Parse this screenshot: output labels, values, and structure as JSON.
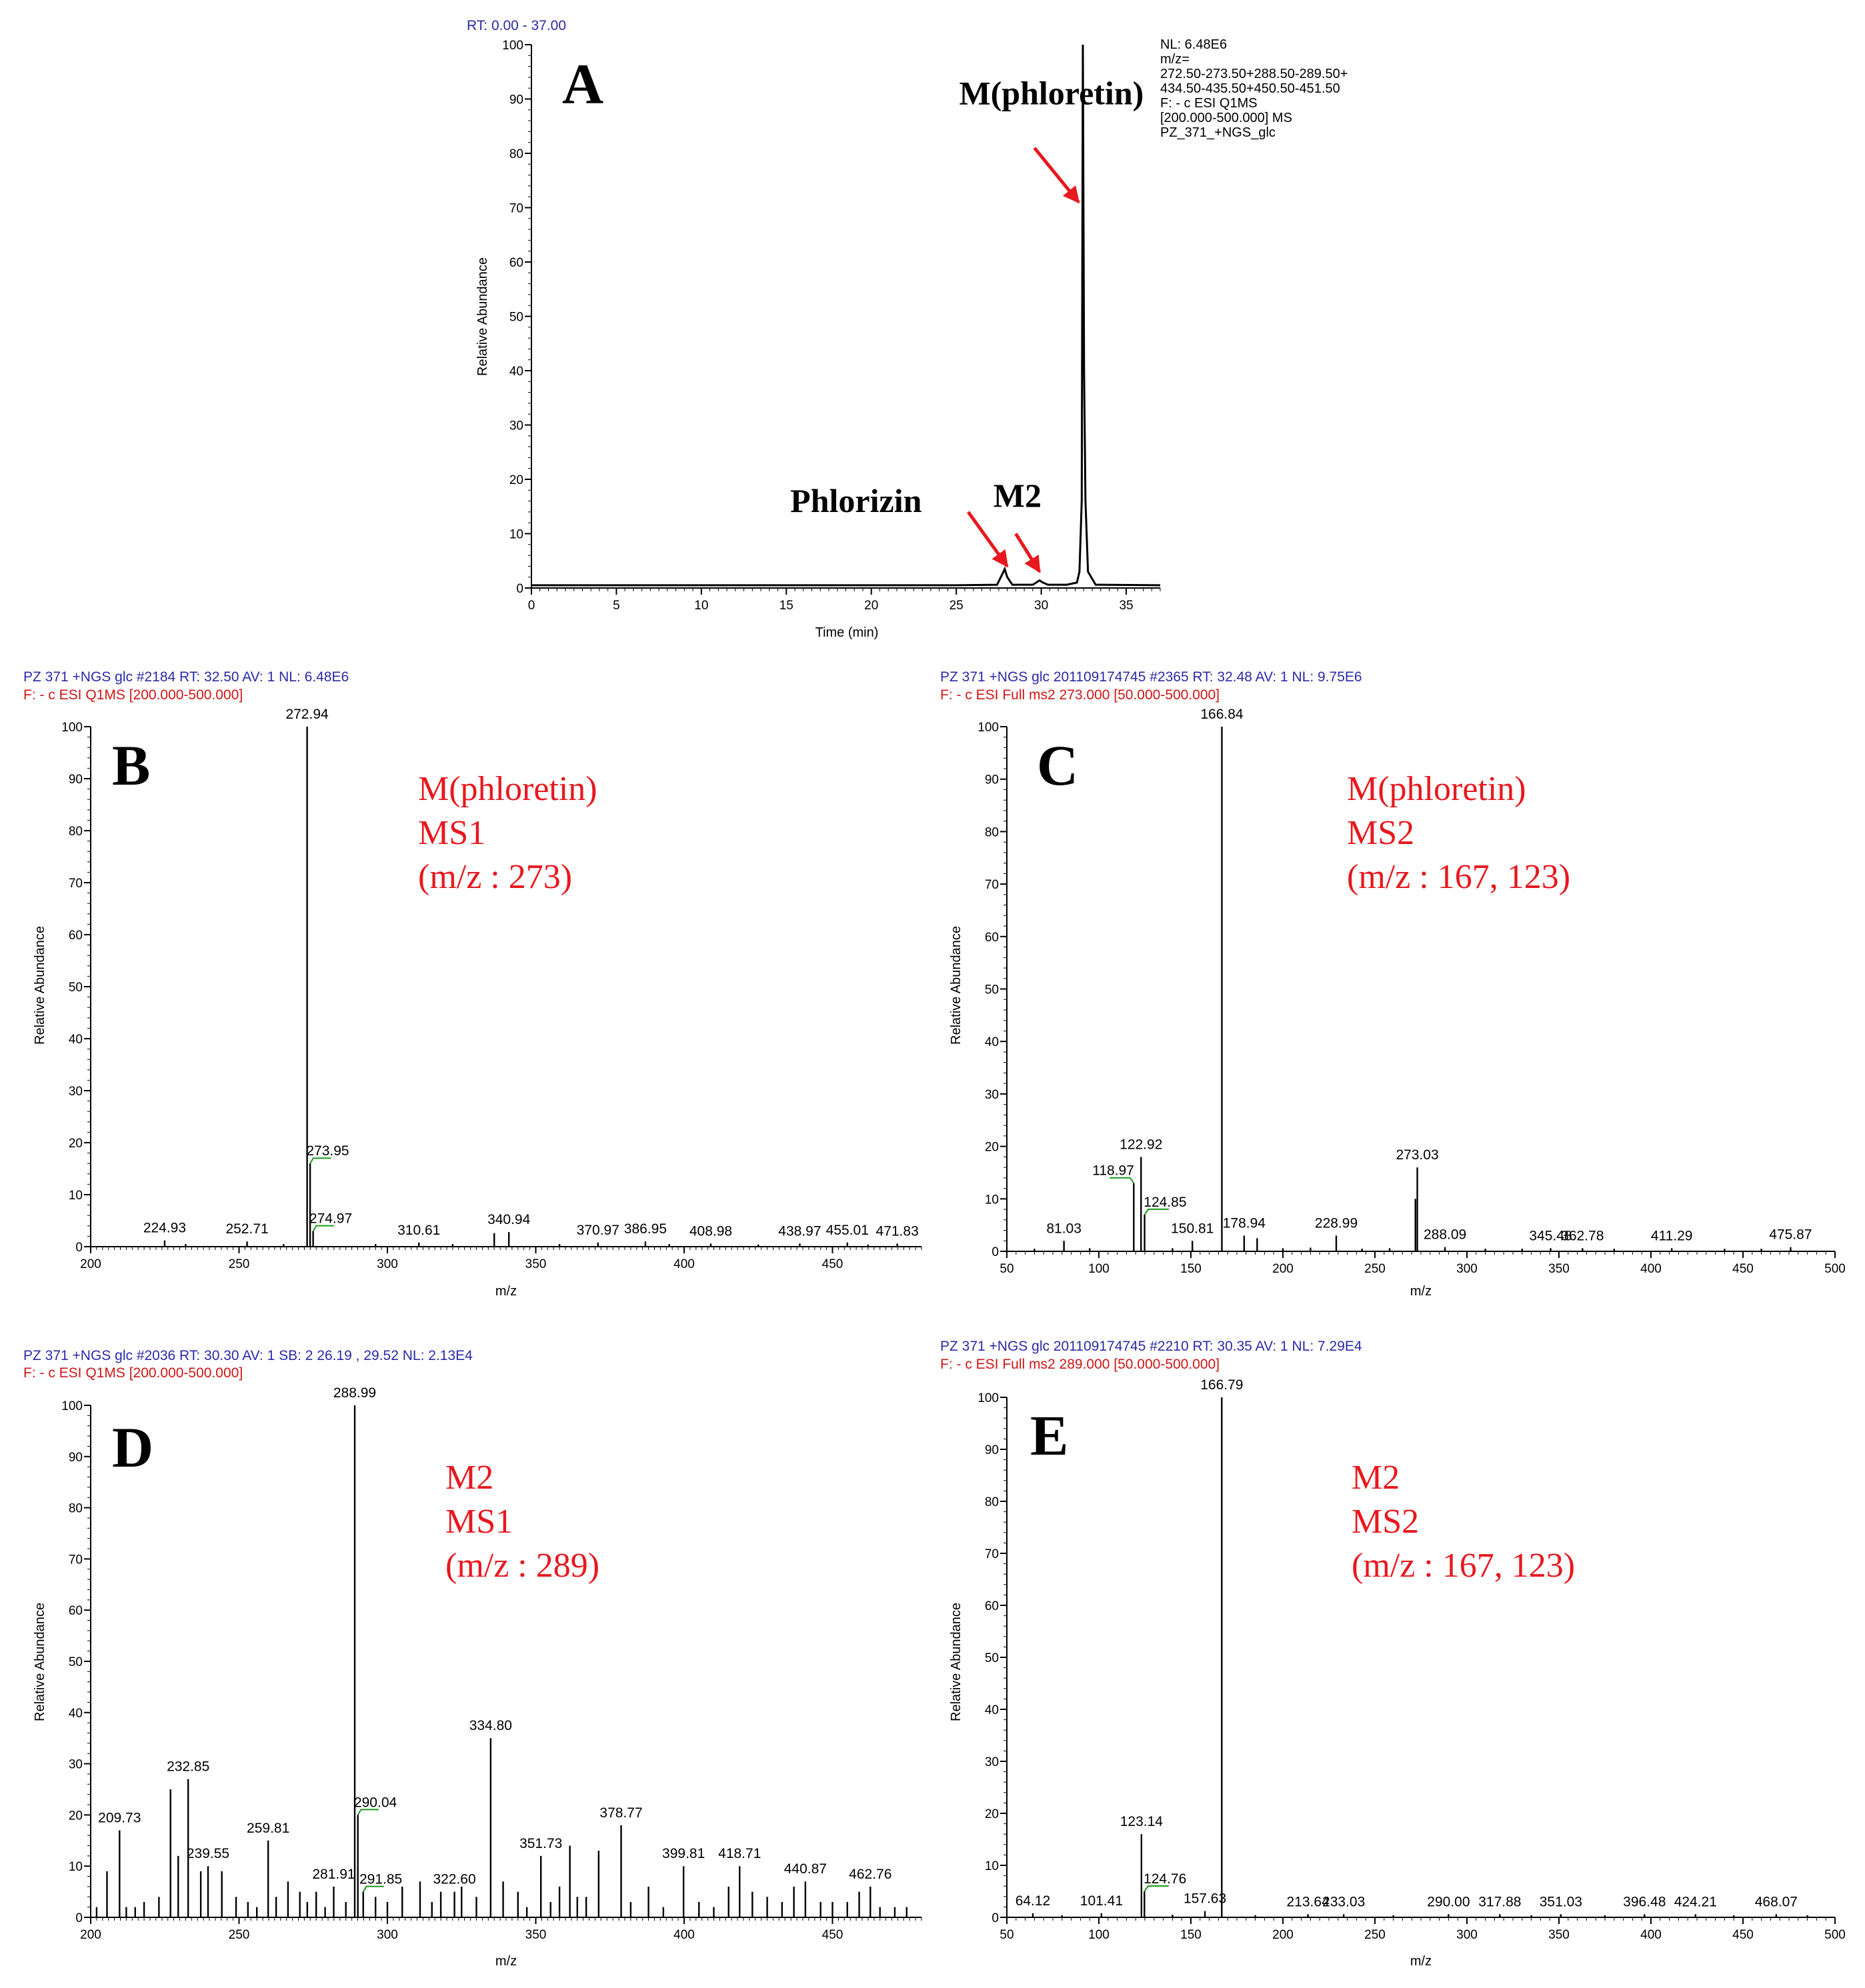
{
  "colors": {
    "header_blue": "#2a2aa8",
    "header_red": "#d01515",
    "annotation_red": "#e8181e",
    "leader_green": "#1a9a1a",
    "trace": "#000000"
  },
  "chart_data": [
    {
      "id": "A",
      "type": "line",
      "panel_letter": "A",
      "header_lines": [
        "RT: 0.00 - 37.00"
      ],
      "info_lines": [
        "NL: 6.48E6",
        "m/z=",
        "272.50-273.50+288.50-289.50+",
        "434.50-435.50+450.50-451.50",
        "F: - c ESI Q1MS",
        "[200.000-500.000]  MS",
        "PZ_371_+NGS_glc"
      ],
      "xlabel": "Time (min)",
      "ylabel": "Relative Abundance",
      "xlim": [
        0,
        37
      ],
      "ylim": [
        0,
        100
      ],
      "xticks": [
        0,
        5,
        10,
        15,
        20,
        25,
        30,
        35
      ],
      "yticks": [
        0,
        10,
        20,
        30,
        40,
        50,
        60,
        70,
        80,
        90,
        100
      ],
      "x": [
        0,
        10,
        20,
        25,
        27.4,
        27.7,
        27.85,
        28.0,
        28.3,
        29.5,
        29.9,
        30.1,
        30.4,
        31.5,
        32.1,
        32.25,
        32.38,
        32.45,
        32.52,
        32.6,
        32.75,
        33.2,
        37
      ],
      "y": [
        0.5,
        0.5,
        0.5,
        0.5,
        0.6,
        2.5,
        3.5,
        2.0,
        0.6,
        0.6,
        1.4,
        1.0,
        0.6,
        0.6,
        1.0,
        3.0,
        16.0,
        100,
        40.0,
        16.0,
        3.0,
        0.6,
        0.5
      ],
      "annotations": [
        {
          "text": "M(phloretin)",
          "x": 30.6,
          "y": 89
        },
        {
          "text": "Phlorizin",
          "x": 19.1,
          "y": 14
        },
        {
          "text": "M2",
          "x": 28.6,
          "y": 15
        }
      ],
      "arrows": [
        {
          "x1": 29.6,
          "y1": 81,
          "x2": 32.2,
          "y2": 71
        },
        {
          "x1": 25.7,
          "y1": 14,
          "x2": 28.0,
          "y2": 4
        },
        {
          "x1": 28.5,
          "y1": 10,
          "x2": 29.9,
          "y2": 3
        }
      ]
    },
    {
      "id": "B",
      "type": "bar",
      "panel_letter": "B",
      "header_lines": [
        "PZ 371 +NGS glc #2184  RT: 32.50  AV: 1  NL: 6.48E6",
        "F: - c ESI Q1MS [200.000-500.000]"
      ],
      "red_lines": [
        "M(phloretin)",
        "MS1",
        "(m/z : 273)"
      ],
      "xlabel": "m/z",
      "ylabel": "Relative Abundance",
      "xlim": [
        200,
        480
      ],
      "ylim": [
        0,
        100
      ],
      "xticks": [
        200,
        250,
        300,
        350,
        400,
        450
      ],
      "yticks": [
        0,
        10,
        20,
        30,
        40,
        50,
        60,
        70,
        80,
        90,
        100
      ],
      "peaks": [
        [
          272.94,
          100
        ],
        [
          273.95,
          16
        ],
        [
          274.97,
          3
        ],
        [
          224.93,
          1.2
        ],
        [
          252.71,
          1
        ],
        [
          310.61,
          0.8
        ],
        [
          340.94,
          2.8
        ],
        [
          336.0,
          2.6
        ],
        [
          370.97,
          0.8
        ],
        [
          386.95,
          1
        ],
        [
          408.98,
          0.6
        ],
        [
          438.97,
          0.6
        ],
        [
          455.01,
          0.8
        ],
        [
          471.83,
          0.6
        ],
        [
          232,
          0.5
        ],
        [
          265,
          0.5
        ],
        [
          296,
          0.5
        ],
        [
          322,
          0.5
        ],
        [
          358,
          0.5
        ],
        [
          395,
          0.5
        ],
        [
          425,
          0.4
        ],
        [
          462,
          0.4
        ]
      ],
      "labels": [
        {
          "text": "272.94",
          "x": 272.94,
          "y": 100
        },
        {
          "text": "273.95",
          "x": 273.95,
          "y": 16,
          "dx": 12,
          "leader": true
        },
        {
          "text": "274.97",
          "x": 274.97,
          "y": 3,
          "dx": 12,
          "leader": true
        },
        {
          "text": "224.93",
          "x": 224.93,
          "y": 1.2
        },
        {
          "text": "252.71",
          "x": 252.71,
          "y": 1
        },
        {
          "text": "310.61",
          "x": 310.61,
          "y": 0.8
        },
        {
          "text": "340.94",
          "x": 340.94,
          "y": 2.8
        },
        {
          "text": "370.97",
          "x": 370.97,
          "y": 0.8
        },
        {
          "text": "386.95",
          "x": 386.95,
          "y": 1
        },
        {
          "text": "408.98",
          "x": 408.98,
          "y": 0.6
        },
        {
          "text": "438.97",
          "x": 438.97,
          "y": 0.6
        },
        {
          "text": "455.01",
          "x": 455.01,
          "y": 0.8
        },
        {
          "text": "471.83",
          "x": 471.83,
          "y": 0.6
        }
      ]
    },
    {
      "id": "C",
      "type": "bar",
      "panel_letter": "C",
      "header_lines": [
        "PZ 371 +NGS glc 201109174745 #2365  RT: 32.48  AV: 1  NL: 9.75E6",
        "F: - c ESI Full ms2 273.000 [50.000-500.000]"
      ],
      "red_lines": [
        "M(phloretin)",
        "MS2",
        "(m/z : 167, 123)"
      ],
      "xlabel": "m/z",
      "ylabel": "Relative Abundance",
      "xlim": [
        50,
        500
      ],
      "ylim": [
        0,
        100
      ],
      "xticks": [
        50,
        100,
        150,
        200,
        250,
        300,
        350,
        400,
        450,
        500
      ],
      "yticks": [
        0,
        10,
        20,
        30,
        40,
        50,
        60,
        70,
        80,
        90,
        100
      ],
      "peaks": [
        [
          166.84,
          100
        ],
        [
          122.92,
          18
        ],
        [
          118.97,
          13
        ],
        [
          124.85,
          7
        ],
        [
          273.03,
          16
        ],
        [
          272.0,
          10
        ],
        [
          81.03,
          2
        ],
        [
          150.81,
          2
        ],
        [
          178.94,
          3
        ],
        [
          186,
          2.5
        ],
        [
          228.99,
          3
        ],
        [
          288.09,
          0.8
        ],
        [
          345.48,
          0.6
        ],
        [
          362.78,
          0.6
        ],
        [
          411.29,
          0.6
        ],
        [
          475.87,
          0.8
        ],
        [
          65,
          0.5
        ],
        [
          95,
          0.6
        ],
        [
          140,
          0.6
        ],
        [
          200,
          0.6
        ],
        [
          215,
          0.7
        ],
        [
          243,
          0.5
        ],
        [
          258,
          0.6
        ],
        [
          310,
          0.5
        ],
        [
          330,
          0.5
        ],
        [
          380,
          0.5
        ],
        [
          440,
          0.5
        ],
        [
          460,
          0.5
        ]
      ],
      "labels": [
        {
          "text": "166.84",
          "x": 166.84,
          "y": 100
        },
        {
          "text": "122.92",
          "x": 122.92,
          "y": 18
        },
        {
          "text": "118.97",
          "x": 118.97,
          "y": 13,
          "dx": -14,
          "leader": true
        },
        {
          "text": "124.85",
          "x": 124.85,
          "y": 7,
          "dx": 14,
          "leader": true
        },
        {
          "text": "273.03",
          "x": 273.03,
          "y": 16
        },
        {
          "text": "81.03",
          "x": 81.03,
          "y": 2
        },
        {
          "text": "150.81",
          "x": 150.81,
          "y": 2
        },
        {
          "text": "178.94",
          "x": 178.94,
          "y": 3
        },
        {
          "text": "228.99",
          "x": 228.99,
          "y": 3
        },
        {
          "text": "288.09",
          "x": 288.09,
          "y": 0.8
        },
        {
          "text": "345.48",
          "x": 345.48,
          "y": 0.6
        },
        {
          "text": "362.78",
          "x": 362.78,
          "y": 0.6
        },
        {
          "text": "411.29",
          "x": 411.29,
          "y": 0.6
        },
        {
          "text": "475.87",
          "x": 475.87,
          "y": 0.8
        }
      ]
    },
    {
      "id": "D",
      "type": "bar",
      "panel_letter": "D",
      "header_lines": [
        "PZ 371 +NGS glc #2036  RT: 30.30  AV: 1  SB: 2  26.19 , 29.52  NL: 2.13E4",
        "F: - c ESI Q1MS [200.000-500.000]"
      ],
      "red_lines": [
        "M2",
        "MS1",
        "(m/z : 289)"
      ],
      "xlabel": "m/z",
      "ylabel": "Relative Abundance",
      "xlim": [
        200,
        480
      ],
      "ylim": [
        0,
        100
      ],
      "xticks": [
        200,
        250,
        300,
        350,
        400,
        450
      ],
      "yticks": [
        0,
        10,
        20,
        30,
        40,
        50,
        60,
        70,
        80,
        90,
        100
      ],
      "peaks": [
        [
          288.99,
          100
        ],
        [
          334.8,
          35
        ],
        [
          232.85,
          27
        ],
        [
          226.9,
          25
        ],
        [
          378.77,
          18
        ],
        [
          209.73,
          17
        ],
        [
          259.81,
          15
        ],
        [
          290.04,
          20
        ],
        [
          351.73,
          12
        ],
        [
          361.5,
          14
        ],
        [
          371.2,
          13
        ],
        [
          229.5,
          12
        ],
        [
          237.1,
          9
        ],
        [
          239.55,
          10
        ],
        [
          244.2,
          9
        ],
        [
          399.81,
          10
        ],
        [
          418.71,
          10
        ],
        [
          440.87,
          7
        ],
        [
          462.76,
          6
        ],
        [
          281.91,
          6
        ],
        [
          291.85,
          5
        ],
        [
          322.6,
          5
        ],
        [
          205.5,
          9
        ],
        [
          218.0,
          3
        ],
        [
          223.0,
          4
        ],
        [
          249.0,
          4
        ],
        [
          256.0,
          2
        ],
        [
          262.5,
          4
        ],
        [
          266.5,
          7
        ],
        [
          270.5,
          5
        ],
        [
          276.0,
          5
        ],
        [
          286.0,
          3
        ],
        [
          296.0,
          4
        ],
        [
          300.0,
          3
        ],
        [
          305.0,
          6
        ],
        [
          311.0,
          7
        ],
        [
          318.0,
          5
        ],
        [
          325.0,
          6
        ],
        [
          330.0,
          4
        ],
        [
          339.0,
          7
        ],
        [
          344.0,
          5
        ],
        [
          355.0,
          3
        ],
        [
          358.0,
          6
        ],
        [
          364.0,
          4
        ],
        [
          367.0,
          4
        ],
        [
          382.0,
          3
        ],
        [
          388.0,
          6
        ],
        [
          393.0,
          2
        ],
        [
          405.0,
          3
        ],
        [
          410.0,
          2
        ],
        [
          415.0,
          6
        ],
        [
          423.0,
          5
        ],
        [
          428.0,
          4
        ],
        [
          433.0,
          3
        ],
        [
          437.0,
          6
        ],
        [
          446.0,
          3
        ],
        [
          450.0,
          3
        ],
        [
          455.0,
          3
        ],
        [
          459.0,
          5
        ],
        [
          466.0,
          2
        ],
        [
          471.0,
          2
        ],
        [
          475.0,
          2
        ],
        [
          202.0,
          2
        ],
        [
          212.0,
          2
        ],
        [
          215.0,
          2
        ],
        [
          253.0,
          3
        ],
        [
          273.0,
          3
        ],
        [
          279.0,
          2
        ],
        [
          315.0,
          3
        ],
        [
          347.0,
          2
        ]
      ],
      "labels": [
        {
          "text": "288.99",
          "x": 288.99,
          "y": 100
        },
        {
          "text": "334.80",
          "x": 334.8,
          "y": 35
        },
        {
          "text": "232.85",
          "x": 232.85,
          "y": 27
        },
        {
          "text": "378.77",
          "x": 378.77,
          "y": 18
        },
        {
          "text": "209.73",
          "x": 209.73,
          "y": 17
        },
        {
          "text": "259.81",
          "x": 259.81,
          "y": 15
        },
        {
          "text": "290.04",
          "x": 290.04,
          "y": 20,
          "dx": 12,
          "leader": true
        },
        {
          "text": "351.73",
          "x": 351.73,
          "y": 12
        },
        {
          "text": "239.55",
          "x": 239.55,
          "y": 10
        },
        {
          "text": "399.81",
          "x": 399.81,
          "y": 10
        },
        {
          "text": "418.71",
          "x": 418.71,
          "y": 10
        },
        {
          "text": "440.87",
          "x": 440.87,
          "y": 7
        },
        {
          "text": "462.76",
          "x": 462.76,
          "y": 6
        },
        {
          "text": "281.91",
          "x": 281.91,
          "y": 6
        },
        {
          "text": "291.85",
          "x": 291.85,
          "y": 5,
          "dx": 12,
          "leader": true
        },
        {
          "text": "322.60",
          "x": 322.6,
          "y": 5
        }
      ]
    },
    {
      "id": "E",
      "type": "bar",
      "panel_letter": "E",
      "header_lines": [
        "PZ 371 +NGS glc 201109174745 #2210  RT: 30.35  AV: 1  NL: 7.29E4",
        "F: - c ESI Full ms2 289.000 [50.000-500.000]"
      ],
      "red_lines": [
        "M2",
        "MS2",
        "(m/z : 167, 123)"
      ],
      "xlabel": "m/z",
      "ylabel": "Relative Abundance",
      "xlim": [
        50,
        500
      ],
      "ylim": [
        0,
        100
      ],
      "xticks": [
        50,
        100,
        150,
        200,
        250,
        300,
        350,
        400,
        450,
        500
      ],
      "yticks": [
        0,
        10,
        20,
        30,
        40,
        50,
        60,
        70,
        80,
        90,
        100
      ],
      "peaks": [
        [
          166.79,
          100
        ],
        [
          123.14,
          16
        ],
        [
          124.76,
          5
        ],
        [
          157.63,
          1.2
        ],
        [
          64.12,
          0.8
        ],
        [
          101.41,
          0.8
        ],
        [
          213.64,
          0.6
        ],
        [
          233.03,
          0.6
        ],
        [
          290.0,
          0.6
        ],
        [
          317.88,
          0.6
        ],
        [
          351.03,
          0.6
        ],
        [
          396.48,
          0.6
        ],
        [
          424.21,
          0.6
        ],
        [
          468.07,
          0.6
        ],
        [
          80,
          0.4
        ],
        [
          140,
          0.5
        ],
        [
          185,
          0.4
        ],
        [
          260,
          0.4
        ],
        [
          335,
          0.4
        ],
        [
          375,
          0.4
        ],
        [
          445,
          0.4
        ],
        [
          485,
          0.4
        ]
      ],
      "labels": [
        {
          "text": "166.79",
          "x": 166.79,
          "y": 100
        },
        {
          "text": "123.14",
          "x": 123.14,
          "y": 16
        },
        {
          "text": "124.76",
          "x": 124.76,
          "y": 5,
          "dx": 14,
          "leader": true
        },
        {
          "text": "157.63",
          "x": 157.63,
          "y": 1.2
        },
        {
          "text": "64.12",
          "x": 64.12,
          "y": 0.8
        },
        {
          "text": "101.41",
          "x": 101.41,
          "y": 0.8
        },
        {
          "text": "213.64",
          "x": 213.64,
          "y": 0.6
        },
        {
          "text": "233.03",
          "x": 233.03,
          "y": 0.6
        },
        {
          "text": "290.00",
          "x": 290.0,
          "y": 0.6
        },
        {
          "text": "317.88",
          "x": 317.88,
          "y": 0.6
        },
        {
          "text": "351.03",
          "x": 351.03,
          "y": 0.6
        },
        {
          "text": "396.48",
          "x": 396.48,
          "y": 0.6
        },
        {
          "text": "424.21",
          "x": 424.21,
          "y": 0.6
        },
        {
          "text": "468.07",
          "x": 468.07,
          "y": 0.6
        }
      ]
    }
  ]
}
